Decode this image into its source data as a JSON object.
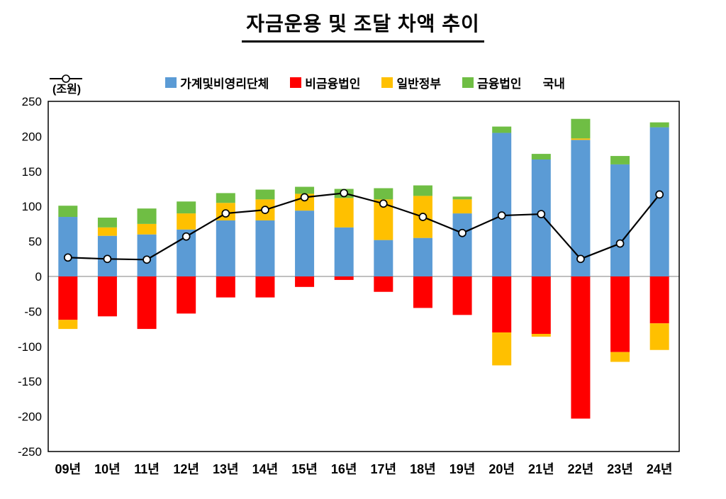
{
  "title": "자금운용 및 조달 차액 추이",
  "chart_data": {
    "type": "bar",
    "stacked": true,
    "title": "자금운용 및 조달 차액 추이",
    "ylabel": "(조원)",
    "ylim": [
      -250,
      250
    ],
    "ytick": 50,
    "grid": false,
    "legend_position": "top",
    "categories": [
      "09년",
      "10년",
      "11년",
      "12년",
      "13년",
      "14년",
      "15년",
      "16년",
      "17년",
      "18년",
      "19년",
      "20년",
      "21년",
      "22년",
      "23년",
      "24년"
    ],
    "series": [
      {
        "name": "가계및비영리단체",
        "color": "#5B9BD5",
        "values": [
          85,
          58,
          60,
          67,
          80,
          80,
          94,
          70,
          52,
          55,
          90,
          205,
          167,
          195,
          160,
          213
        ]
      },
      {
        "name": "비금융법인",
        "color": "#FF0000",
        "values": [
          -62,
          -57,
          -75,
          -53,
          -30,
          -30,
          -15,
          -5,
          -22,
          -45,
          -55,
          -80,
          -82,
          -203,
          -108,
          -67
        ]
      },
      {
        "name": "일반정부",
        "color": "#FFC000",
        "values": [
          -13,
          12,
          15,
          23,
          25,
          30,
          24,
          42,
          58,
          60,
          20,
          -47,
          -4,
          2,
          -14,
          -38
        ]
      },
      {
        "name": "금융법인",
        "color": "#6FBE44",
        "values": [
          16,
          14,
          22,
          17,
          14,
          14,
          10,
          13,
          16,
          15,
          4,
          9,
          8,
          28,
          12,
          7
        ]
      }
    ],
    "line": {
      "name": "국내",
      "color": "#000000",
      "marker": "open-circle",
      "values": [
        27,
        25,
        24,
        57,
        90,
        95,
        113,
        119,
        104,
        85,
        62,
        87,
        89,
        25,
        47,
        117
      ]
    }
  }
}
